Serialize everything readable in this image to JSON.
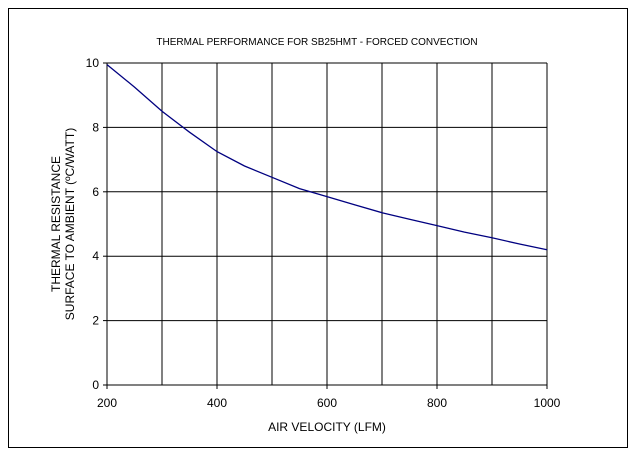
{
  "chart_data": {
    "type": "line",
    "title": "THERMAL PERFORMANCE FOR SB25HMT - FORCED CONVECTION",
    "xlabel": "AIR VELOCITY (LFM)",
    "ylabel_lines": [
      "THERMAL RESISTANCE",
      "SURFACE TO AMBIENT (ºC/WATT)"
    ],
    "xlim": [
      200,
      1000
    ],
    "ylim": [
      0,
      10
    ],
    "x_ticks": [
      200,
      400,
      600,
      800,
      1000
    ],
    "y_ticks": [
      0,
      2,
      4,
      6,
      8,
      10
    ],
    "x_grid_lines": [
      200,
      300,
      400,
      500,
      600,
      700,
      800,
      900,
      1000
    ],
    "grid": true,
    "series_color": "#000080",
    "series": [
      {
        "x": [
          200,
          250,
          300,
          350,
          400,
          450,
          500,
          550,
          600,
          650,
          700,
          750,
          800,
          850,
          900,
          950,
          1000
        ],
        "values": [
          9.95,
          9.25,
          8.5,
          7.85,
          7.25,
          6.8,
          6.45,
          6.1,
          5.85,
          5.6,
          5.35,
          5.15,
          4.95,
          4.75,
          4.57,
          4.38,
          4.2
        ]
      }
    ]
  }
}
